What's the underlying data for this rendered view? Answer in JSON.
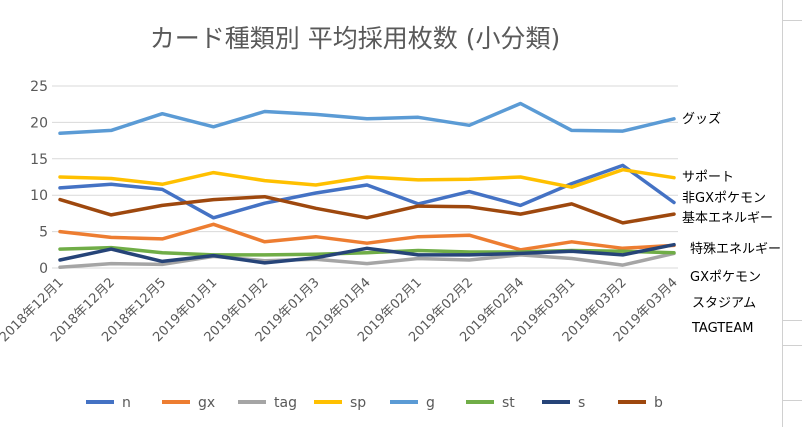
{
  "chart_data": {
    "type": "line",
    "title": "カード種類別 平均採用枚数 (小分類)",
    "xlabel": "",
    "ylabel": "",
    "ylim": [
      0,
      25
    ],
    "yticks": [
      0,
      5,
      10,
      15,
      20,
      25
    ],
    "grid": true,
    "legend_position": "bottom",
    "categories": [
      "2018年12月1",
      "2018年12月2",
      "2018年12月5",
      "2019年01月1",
      "2019年01月2",
      "2019年01月3",
      "2019年01月4",
      "2019年02月1",
      "2019年02月2",
      "2019年02月4",
      "2019年03月1",
      "2019年03月2",
      "2019年03月4"
    ],
    "series": [
      {
        "name": "n",
        "color": "#4472c4",
        "values": [
          11.0,
          11.5,
          10.8,
          6.9,
          8.9,
          10.3,
          11.4,
          8.8,
          10.5,
          8.6,
          11.6,
          14.1,
          9.0
        ]
      },
      {
        "name": "gx",
        "color": "#ed7d31",
        "values": [
          5.0,
          4.2,
          4.0,
          6.0,
          3.6,
          4.3,
          3.4,
          4.3,
          4.5,
          2.5,
          3.6,
          2.7,
          3.1
        ]
      },
      {
        "name": "tag",
        "color": "#a5a5a5",
        "values": [
          0.1,
          0.6,
          0.5,
          1.6,
          1.0,
          1.2,
          0.6,
          1.3,
          1.1,
          1.8,
          1.3,
          0.4,
          2.0
        ]
      },
      {
        "name": "sp",
        "color": "#ffc000",
        "values": [
          12.5,
          12.3,
          11.5,
          13.1,
          12.0,
          11.4,
          12.5,
          12.1,
          12.2,
          12.5,
          11.1,
          13.5,
          12.4
        ]
      },
      {
        "name": "g",
        "color": "#5b9bd5",
        "values": [
          18.5,
          18.9,
          21.2,
          19.4,
          21.5,
          21.1,
          20.5,
          20.7,
          19.6,
          22.6,
          18.9,
          18.8,
          20.5
        ]
      },
      {
        "name": "st",
        "color": "#70ad47",
        "values": [
          2.6,
          2.8,
          2.1,
          1.8,
          1.8,
          1.9,
          2.1,
          2.4,
          2.2,
          2.2,
          2.4,
          2.3,
          2.1
        ]
      },
      {
        "name": "s",
        "color": "#264478",
        "values": [
          1.1,
          2.6,
          0.9,
          1.7,
          0.7,
          1.4,
          2.7,
          1.8,
          1.8,
          2.0,
          2.3,
          1.8,
          3.2
        ]
      },
      {
        "name": "b",
        "color": "#9e480e",
        "values": [
          9.4,
          7.3,
          8.6,
          9.4,
          9.8,
          8.2,
          6.9,
          8.5,
          8.4,
          7.4,
          8.8,
          6.2,
          7.4
        ]
      }
    ],
    "annotations": [
      {
        "text": "グッズ",
        "series": "g"
      },
      {
        "text": "サポート",
        "series": "sp"
      },
      {
        "text": "非GXポケモン",
        "series": "n"
      },
      {
        "text": "基本エネルギー",
        "series": "b"
      },
      {
        "text": "特殊エネルギー",
        "series": "s"
      },
      {
        "text": "GXポケモン",
        "series": "gx"
      },
      {
        "text": "スタジアム",
        "series": "st"
      },
      {
        "text": "TAGTEAM",
        "series": "tag"
      }
    ]
  }
}
